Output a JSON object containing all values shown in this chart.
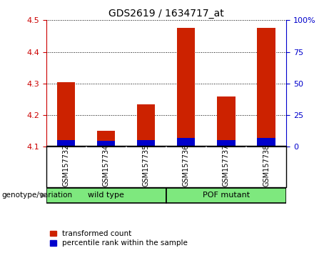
{
  "title": "GDS2619 / 1634717_at",
  "samples": [
    "GSM157732",
    "GSM157734",
    "GSM157735",
    "GSM157736",
    "GSM157737",
    "GSM157738"
  ],
  "red_values": [
    4.305,
    4.15,
    4.235,
    4.475,
    4.26,
    4.475
  ],
  "blue_values": [
    4.122,
    4.118,
    4.12,
    4.128,
    4.12,
    4.128
  ],
  "y_min": 4.1,
  "y_max": 4.5,
  "y_ticks_left": [
    4.1,
    4.2,
    4.3,
    4.4,
    4.5
  ],
  "y_ticks_right": [
    0,
    25,
    50,
    75,
    100
  ],
  "groups": [
    {
      "label": "wild type",
      "indices": [
        0,
        1,
        2
      ],
      "color": "#7EE87E"
    },
    {
      "label": "POF mutant",
      "indices": [
        3,
        4,
        5
      ],
      "color": "#7EE87E"
    }
  ],
  "group_label_prefix": "genotype/variation",
  "left_axis_color": "#cc0000",
  "right_axis_color": "#0000cc",
  "bar_red_color": "#cc2200",
  "bar_blue_color": "#0000cc",
  "legend_red": "transformed count",
  "legend_blue": "percentile rank within the sample",
  "sample_bg_color": "#c8c8c8",
  "group_box_color": "#7EE87E",
  "bar_width": 0.45,
  "title_fontsize": 10
}
